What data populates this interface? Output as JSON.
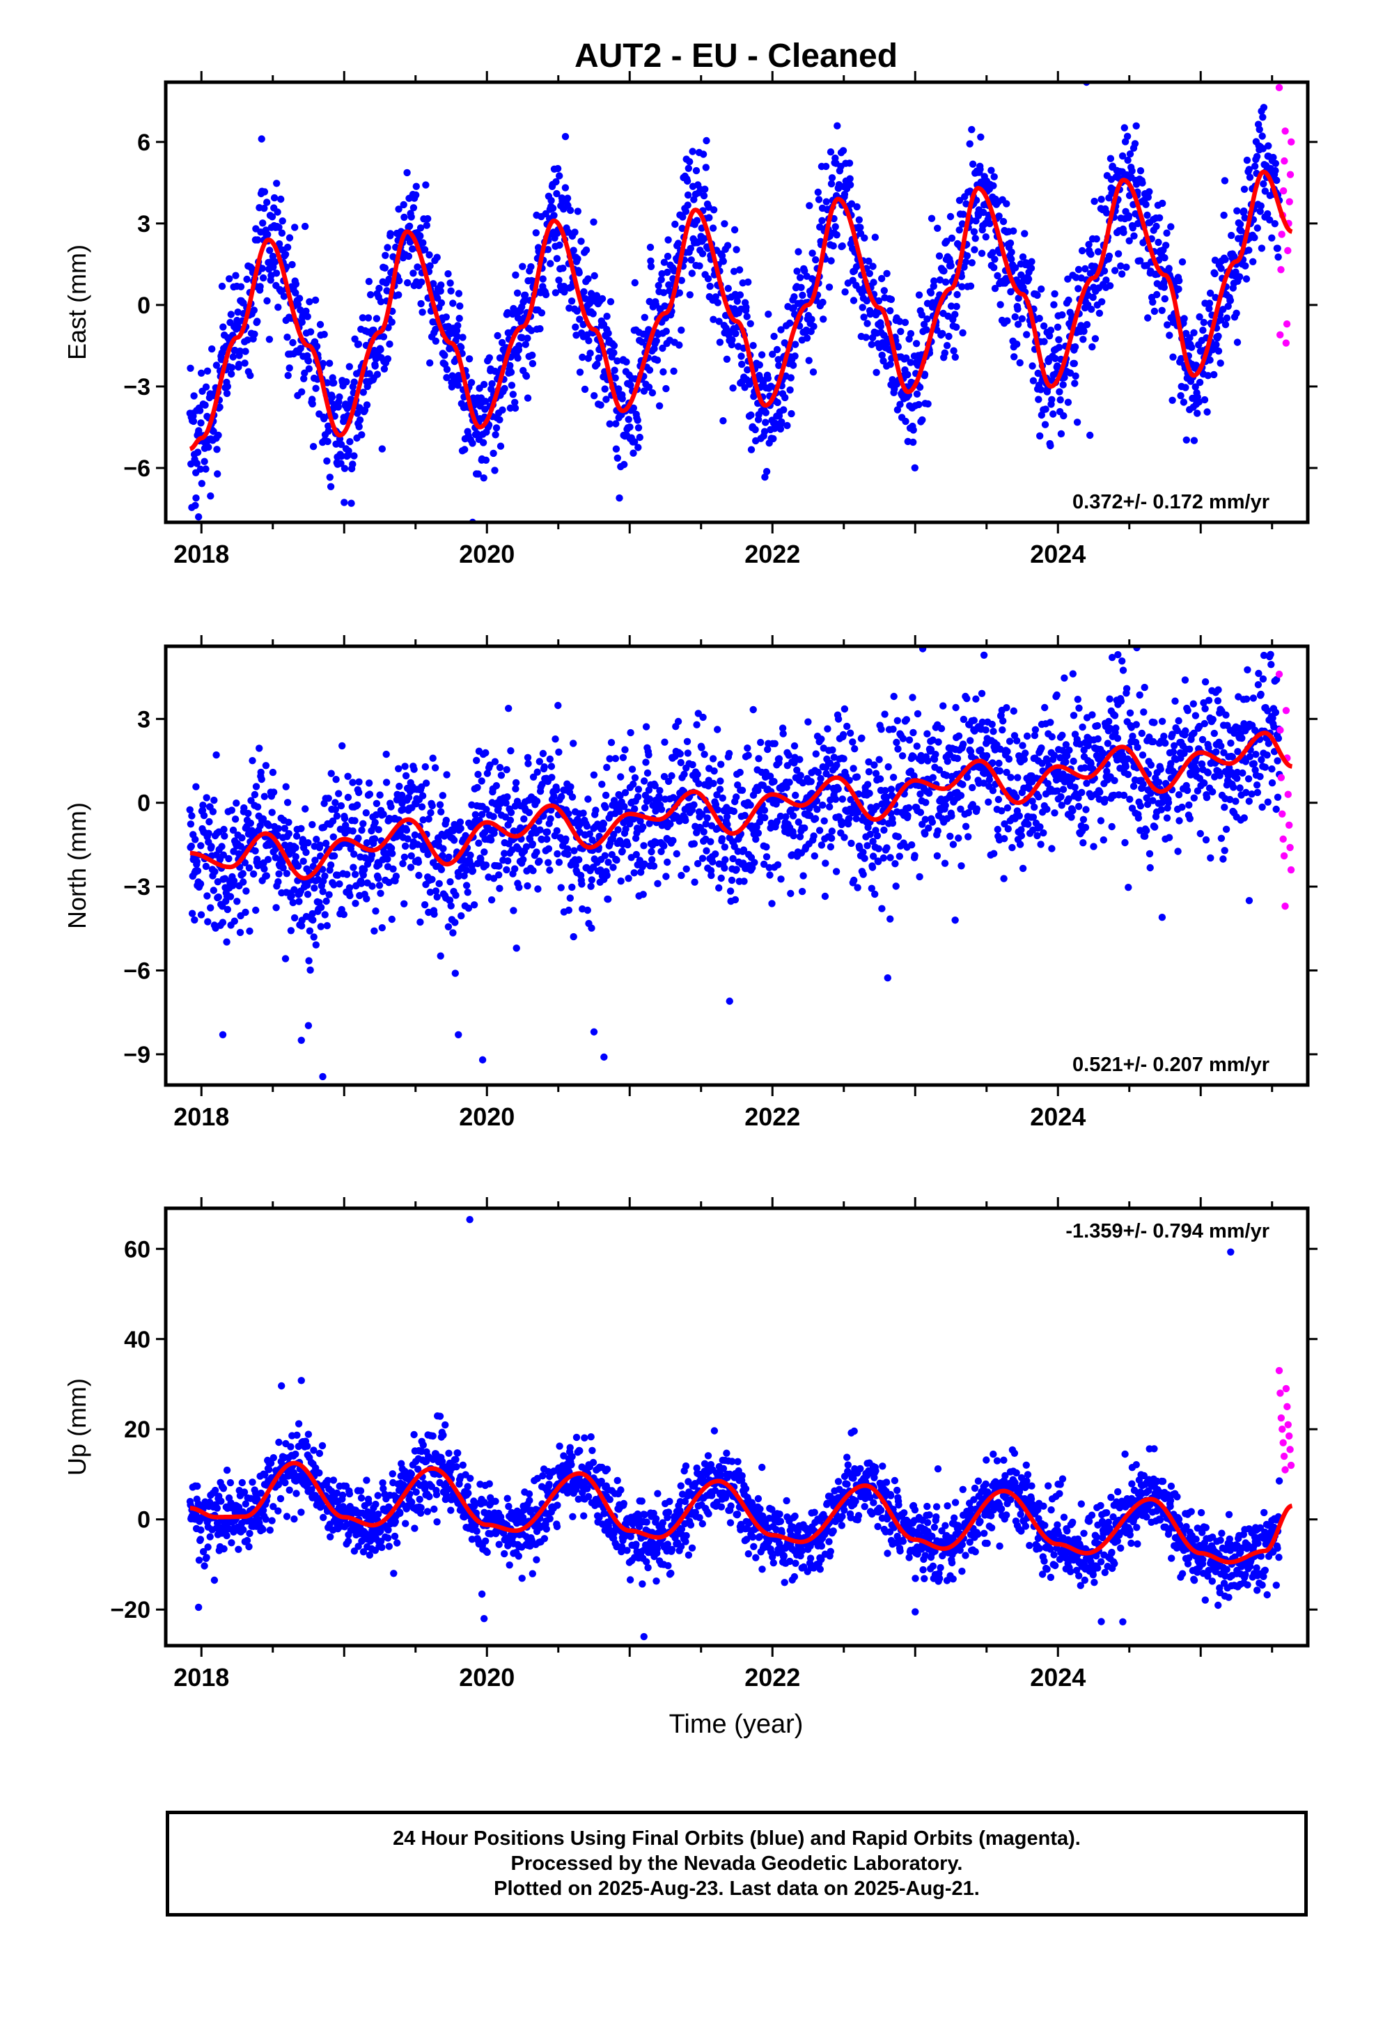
{
  "title": "AUT2  - EU - Cleaned",
  "xlabel": "Time (year)",
  "footer": {
    "line1": "24 Hour Positions Using Final Orbits (blue) and Rapid Orbits (magenta).",
    "line2": "Processed by the Nevada Geodetic Laboratory.",
    "line3": "Plotted on 2025-Aug-23. Last data on 2025-Aug-21."
  },
  "colors": {
    "final": "#0000ff",
    "rapid": "#ff00ff",
    "model": "#ff0000",
    "frame": "#000000"
  },
  "chart_data": [
    {
      "type": "scatter",
      "panel": "east",
      "ylabel": "East (mm)",
      "xlim": [
        2017.75,
        2025.75
      ],
      "ylim": [
        -8,
        8.2
      ],
      "xticks": [
        2018,
        2020,
        2022,
        2024
      ],
      "xtick_labels": [
        "2018",
        "2020",
        "2022",
        "2024"
      ],
      "yticks": [
        -6,
        -3,
        0,
        3,
        6
      ],
      "ytick_labels": [
        "−6",
        "−3",
        "0",
        "3",
        "6"
      ],
      "rate_label": "0.372+/- 0.172 mm/yr",
      "rate_position": "bottom-right",
      "data_span": [
        2017.92,
        2025.64
      ],
      "rapid_start": 2025.55,
      "model": {
        "trend_mm_per_yr": 0.372,
        "annual_amplitude_mm": [
          3.8,
          3.6,
          3.7,
          3.5,
          3.6,
          3.8,
          3.9,
          3.7,
          3.8
        ],
        "annual_peak_times": [
          2018.47,
          2019.44,
          2020.47,
          2021.46,
          2022.46,
          2023.44,
          2024.46,
          2025.44
        ],
        "curve_x": [
          2017.92,
          2018.0,
          2018.25,
          2018.47,
          2018.75,
          2018.97,
          2019.25,
          2019.44,
          2019.75,
          2019.95,
          2020.25,
          2020.47,
          2020.75,
          2020.95,
          2021.25,
          2021.46,
          2021.75,
          2021.95,
          2022.25,
          2022.46,
          2022.75,
          2022.95,
          2023.25,
          2023.44,
          2023.75,
          2023.95,
          2024.25,
          2024.46,
          2024.75,
          2024.95,
          2025.25,
          2025.44,
          2025.64
        ],
        "curve_y": [
          -5.3,
          -4.9,
          -1.2,
          2.4,
          -1.5,
          -4.8,
          -1.0,
          2.7,
          -1.4,
          -4.5,
          -0.8,
          3.1,
          -0.9,
          -3.9,
          -0.3,
          3.5,
          -0.6,
          -3.7,
          0.0,
          3.9,
          -0.1,
          -3.2,
          0.6,
          4.3,
          0.4,
          -3.0,
          1.0,
          4.6,
          1.1,
          -2.6,
          1.6,
          4.9,
          2.7
        ]
      },
      "scatter": {
        "count": 2500,
        "sigma_mm": 1.2,
        "outliers": [
          [
            2024.2,
            8.2
          ],
          [
            2020.55,
            6.2
          ],
          [
            2019.9,
            -8.0
          ],
          [
            2017.98,
            -7.8
          ],
          [
            2019.05,
            -7.3
          ]
        ]
      },
      "rapid_values": [
        8.0,
        6.4,
        6.0,
        5.3,
        4.8,
        4.2,
        3.8,
        3.3,
        3.0,
        2.6,
        2.0,
        1.3,
        -0.7,
        -1.1,
        -1.4
      ]
    },
    {
      "type": "scatter",
      "panel": "north",
      "ylabel": "North (mm)",
      "xlim": [
        2017.75,
        2025.75
      ],
      "ylim": [
        -10.1,
        5.6
      ],
      "xticks": [
        2018,
        2020,
        2022,
        2024
      ],
      "xtick_labels": [
        "2018",
        "2020",
        "2022",
        "2024"
      ],
      "yticks": [
        -9,
        -6,
        -3,
        0,
        3
      ],
      "ytick_labels": [
        "−9",
        "−6",
        "−3",
        "0",
        "3"
      ],
      "rate_label": "0.521+/- 0.207 mm/yr",
      "rate_position": "bottom-right",
      "data_span": [
        2017.92,
        2025.64
      ],
      "rapid_start": 2025.55,
      "model": {
        "trend_mm_per_yr": 0.521,
        "curve_x": [
          2017.92,
          2018.2,
          2018.45,
          2018.72,
          2019.0,
          2019.2,
          2019.45,
          2019.72,
          2020.0,
          2020.2,
          2020.45,
          2020.72,
          2021.0,
          2021.2,
          2021.45,
          2021.72,
          2022.0,
          2022.2,
          2022.45,
          2022.72,
          2023.0,
          2023.2,
          2023.45,
          2023.72,
          2024.0,
          2024.2,
          2024.45,
          2024.72,
          2025.0,
          2025.2,
          2025.45,
          2025.64
        ],
        "curve_y": [
          -1.8,
          -2.3,
          -1.1,
          -2.7,
          -1.3,
          -1.7,
          -0.6,
          -2.2,
          -0.7,
          -1.2,
          -0.1,
          -1.6,
          -0.4,
          -0.6,
          0.4,
          -1.1,
          0.3,
          -0.1,
          0.9,
          -0.6,
          0.8,
          0.5,
          1.5,
          0.0,
          1.3,
          0.9,
          2.0,
          0.4,
          1.8,
          1.4,
          2.5,
          1.3
        ]
      },
      "scatter": {
        "count": 2500,
        "sigma_mm": 1.3,
        "outliers": [
          [
            2018.15,
            -8.3
          ],
          [
            2018.7,
            -8.5
          ],
          [
            2018.85,
            -9.8
          ],
          [
            2019.8,
            -8.3
          ],
          [
            2019.97,
            -9.2
          ],
          [
            2020.75,
            -8.2
          ],
          [
            2020.82,
            -9.1
          ],
          [
            2021.7,
            -7.1
          ],
          [
            2024.42,
            5.3
          ],
          [
            2024.38,
            5.2
          ],
          [
            2023.28,
            -4.2
          ],
          [
            2024.73,
            -4.1
          ],
          [
            2025.34,
            -3.5
          ]
        ]
      },
      "rapid_values": [
        4.6,
        3.3,
        2.6,
        1.6,
        0.9,
        0.3,
        -0.4,
        -0.8,
        -1.3,
        -1.6,
        -1.9,
        -2.4,
        -3.7
      ]
    },
    {
      "type": "scatter",
      "panel": "up",
      "ylabel": "Up (mm)",
      "xlim": [
        2017.75,
        2025.75
      ],
      "ylim": [
        -28,
        69
      ],
      "xticks": [
        2018,
        2020,
        2022,
        2024
      ],
      "xtick_labels": [
        "2018",
        "2020",
        "2022",
        "2024"
      ],
      "yticks": [
        -20,
        0,
        20,
        40,
        60
      ],
      "ytick_labels": [
        "−20",
        "0",
        "20",
        "40",
        "60"
      ],
      "rate_label": "-1.359+/- 0.794 mm/yr",
      "rate_position": "top-right",
      "data_span": [
        2017.92,
        2025.64
      ],
      "rapid_start": 2025.55,
      "model": {
        "trend_mm_per_yr": -1.359,
        "curve_x": [
          2017.92,
          2018.1,
          2018.3,
          2018.65,
          2019.0,
          2019.2,
          2019.62,
          2020.0,
          2020.2,
          2020.65,
          2021.0,
          2021.2,
          2021.62,
          2022.0,
          2022.2,
          2022.65,
          2023.0,
          2023.2,
          2023.62,
          2024.0,
          2024.2,
          2024.65,
          2025.0,
          2025.2,
          2025.45,
          2025.64
        ],
        "curve_y": [
          2.5,
          0.5,
          0.6,
          12.5,
          0.5,
          -1.3,
          11.3,
          -1.2,
          -2.5,
          10.2,
          -2.5,
          -4.0,
          8.5,
          -3.5,
          -5.0,
          7.5,
          -4.5,
          -6.5,
          6.3,
          -5.5,
          -7.5,
          4.5,
          -7.5,
          -9.5,
          -7.0,
          3.0
        ]
      },
      "scatter": {
        "count": 2500,
        "sigma_mm": 4.0,
        "outliers": [
          [
            2019.88,
            66.5
          ],
          [
            2025.21,
            59.3
          ],
          [
            2018.7,
            30.8
          ],
          [
            2021.1,
            -26.0
          ],
          [
            2019.98,
            -22.0
          ],
          [
            2017.98,
            -19.5
          ],
          [
            2023.0,
            -20.5
          ]
        ]
      },
      "rapid_values": [
        33.0,
        29.0,
        28.0,
        25.0,
        22.5,
        21.0,
        20.0,
        18.5,
        17.0,
        15.5,
        14.0,
        12.0,
        11.0
      ]
    }
  ]
}
